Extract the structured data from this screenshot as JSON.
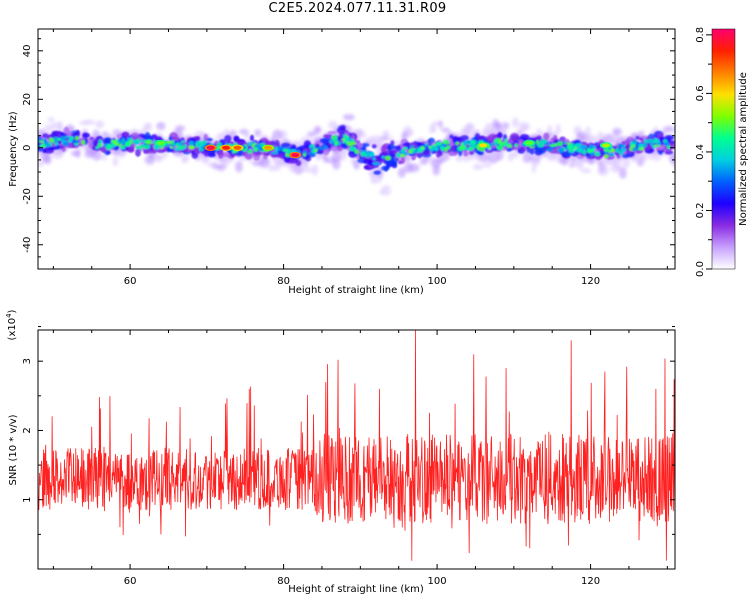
{
  "title": "C2E5.2024.077.11.31.R09",
  "chart_data": [
    {
      "type": "heatmap",
      "xlabel": "Height of straight line (km)",
      "ylabel": "Frequency (Hz)",
      "xlim": [
        48,
        131
      ],
      "ylim": [
        -50,
        49
      ],
      "xticks": [
        60,
        80,
        100,
        120
      ],
      "yticks": [
        -40,
        -20,
        0,
        20,
        40
      ],
      "colorbar": {
        "label": "Normalized spectral amplitude",
        "range": [
          0.0,
          0.82
        ],
        "ticks": [
          0.0,
          0.2,
          0.4,
          0.6,
          0.8
        ],
        "colormap": [
          "#ffffff",
          "#c7a0ff",
          "#8a2be2",
          "#1e00ff",
          "#0060ff",
          "#00d0e0",
          "#00ff90",
          "#7fff00",
          "#ffe000",
          "#ff8000",
          "#ff2000",
          "#ff0070"
        ]
      },
      "ridge": {
        "x": [
          48,
          52,
          56,
          60,
          64,
          68,
          72,
          76,
          80,
          82,
          86,
          88,
          90,
          92,
          94,
          98,
          102,
          106,
          110,
          114,
          118,
          122,
          126,
          131
        ],
        "y": [
          2,
          3,
          1,
          2,
          1,
          1,
          0,
          0,
          -1,
          -3,
          2,
          4,
          -2,
          -5,
          -3,
          0,
          1,
          1,
          2,
          1,
          0,
          -2,
          1,
          2
        ]
      },
      "hotspots": [
        {
          "x": 70.5,
          "y": 0,
          "value": 0.8
        },
        {
          "x": 72.5,
          "y": 0,
          "value": 0.75
        },
        {
          "x": 74,
          "y": 0,
          "value": 0.7
        },
        {
          "x": 78,
          "y": 0,
          "value": 0.65
        },
        {
          "x": 81.5,
          "y": -3,
          "value": 0.8
        },
        {
          "x": 106,
          "y": 1,
          "value": 0.6
        },
        {
          "x": 122,
          "y": 1,
          "value": 0.55
        },
        {
          "x": 64,
          "y": 2,
          "value": 0.5
        },
        {
          "x": 112,
          "y": 2,
          "value": 0.5
        }
      ]
    },
    {
      "type": "line",
      "xlabel": "Height of straight line (km)",
      "ylabel": "SNR (10 * v/v)",
      "scale_label": "(x10^4)",
      "xlim": [
        48,
        131
      ],
      "ylim": [
        0.0,
        3.45
      ],
      "xticks": [
        60,
        80,
        100,
        120
      ],
      "yticks": [
        1,
        2,
        3
      ],
      "line_color": "#ff2020",
      "noise": {
        "base": 1.3,
        "spread": 0.45,
        "n_points": 1400
      },
      "peaks": [
        {
          "x": 97.2,
          "y": 3.45
        },
        {
          "x": 117.5,
          "y": 3.3
        },
        {
          "x": 104.8,
          "y": 3.1
        },
        {
          "x": 128.5,
          "y": 2.6
        },
        {
          "x": 75.5,
          "y": 2.6
        },
        {
          "x": 109,
          "y": 2.9
        },
        {
          "x": 92.5,
          "y": 2.6
        },
        {
          "x": 85.5,
          "y": 2.7
        }
      ]
    }
  ]
}
